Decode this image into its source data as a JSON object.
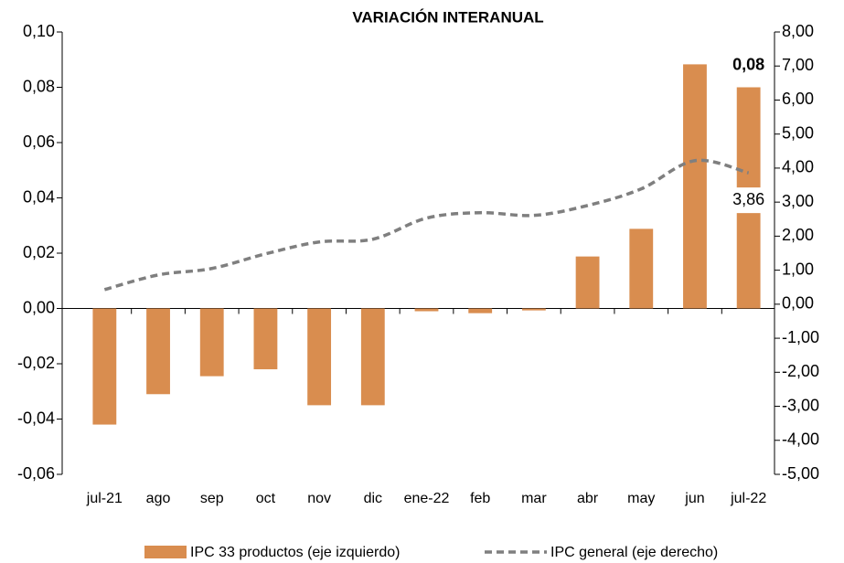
{
  "chart_data": {
    "type": "bar-line",
    "title": "VARIACIÓN INTERANUAL",
    "categories": [
      "jul-21",
      "ago",
      "sep",
      "oct",
      "nov",
      "dic",
      "ene-22",
      "feb",
      "mar",
      "abr",
      "may",
      "jun",
      "jul-22"
    ],
    "series": [
      {
        "name": "IPC 33 productos (eje izquierdo)",
        "type": "bar",
        "color": "#d98d4f",
        "values": [
          -0.042,
          -0.031,
          -0.0245,
          -0.022,
          -0.035,
          -0.035,
          -0.001,
          -0.0017,
          -0.0007,
          0.0188,
          0.0288,
          0.0883,
          0.08
        ],
        "value_labels": [
          null,
          null,
          null,
          null,
          null,
          null,
          null,
          null,
          null,
          null,
          null,
          null,
          "0,08"
        ]
      },
      {
        "name": "IPC general (eje derecho)",
        "type": "line",
        "color": "#7f7f7f",
        "axis": "y2",
        "values": [
          0.43,
          0.86,
          1.05,
          1.48,
          1.83,
          1.91,
          2.53,
          2.69,
          2.61,
          2.9,
          3.39,
          4.22,
          3.86
        ],
        "value_labels": [
          null,
          null,
          null,
          null,
          null,
          null,
          null,
          null,
          null,
          null,
          null,
          null,
          "3,86"
        ]
      }
    ],
    "ylim": [
      -0.06,
      0.1
    ],
    "yticks": [
      {
        "value": 0.1,
        "label": "0,10"
      },
      {
        "value": 0.08,
        "label": "0,08"
      },
      {
        "value": 0.06,
        "label": "0,06"
      },
      {
        "value": 0.04,
        "label": "0,04"
      },
      {
        "value": 0.02,
        "label": "0,02"
      },
      {
        "value": 0,
        "label": "0,00"
      },
      {
        "value": -0.02,
        "label": "-0,02"
      },
      {
        "value": -0.04,
        "label": "-0,04"
      },
      {
        "value": -0.06,
        "label": "-0,06"
      }
    ],
    "y2lim": [
      -5,
      8
    ],
    "y2ticks": [
      {
        "value": 8,
        "label": "8,00"
      },
      {
        "value": 7,
        "label": "7,00"
      },
      {
        "value": 6,
        "label": "6,00"
      },
      {
        "value": 5,
        "label": "5,00"
      },
      {
        "value": 4,
        "label": "4,00"
      },
      {
        "value": 3,
        "label": "3,00"
      },
      {
        "value": 2,
        "label": "2,00"
      },
      {
        "value": 1,
        "label": "1,00"
      },
      {
        "value": 0,
        "label": "0,00"
      },
      {
        "value": -1,
        "label": "-1,00"
      },
      {
        "value": -2,
        "label": "-2,00"
      },
      {
        "value": -3,
        "label": "-3,00"
      },
      {
        "value": -4,
        "label": "-4,00"
      },
      {
        "value": -5,
        "label": "-5,00"
      }
    ],
    "grid": false
  }
}
